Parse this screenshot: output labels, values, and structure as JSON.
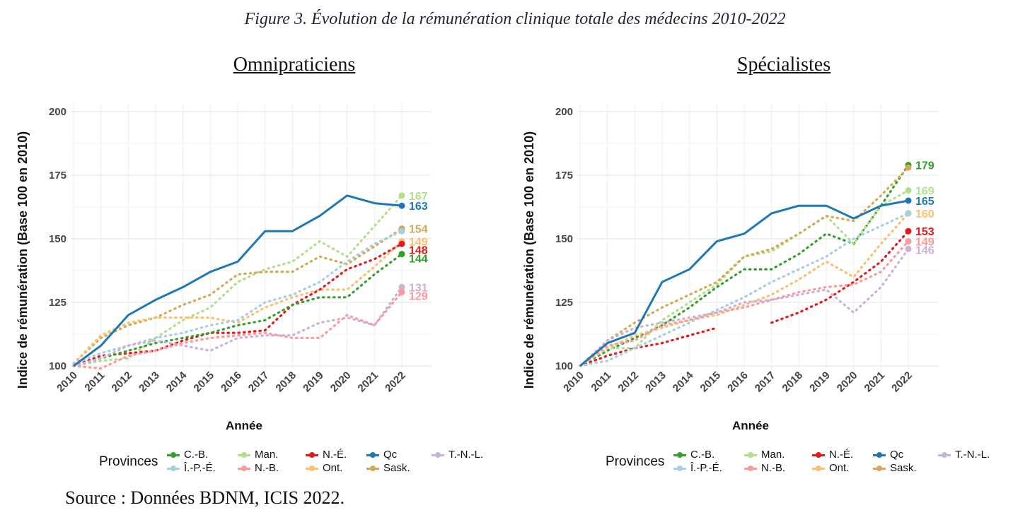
{
  "figure_title": "Figure 3. Évolution de la rémunération clinique totale des médecins 2010-2022",
  "source": "Source : Données BDNM, ICIS 2022.",
  "legend": {
    "title": "Provinces",
    "items": [
      {
        "label": "C.-B.",
        "color": "#33a02c"
      },
      {
        "label": "Î.-P.-É.",
        "color": "#a6cee3"
      },
      {
        "label": "Man.",
        "color": "#b2df8a"
      },
      {
        "label": "N.-B.",
        "color": "#fb9a99"
      },
      {
        "label": "N.-É.",
        "color": "#e31a1c"
      },
      {
        "label": "Ont.",
        "color": "#fdbf6f"
      },
      {
        "label": "Qc",
        "color": "#1f78b4"
      },
      {
        "label": "Sask.",
        "color": "#d4a954"
      },
      {
        "label": "T.-N.-L.",
        "color": "#cab2d6"
      }
    ]
  },
  "chart_data": [
    {
      "type": "line",
      "title": "Omnipraticiens",
      "xlabel": "Année",
      "ylabel": "Indice de rémunération (Base 100 en 2010)",
      "x": [
        2010,
        2011,
        2012,
        2013,
        2014,
        2015,
        2016,
        2017,
        2018,
        2019,
        2020,
        2021,
        2022
      ],
      "ylim": [
        100,
        200
      ],
      "yticks": [
        100,
        125,
        150,
        175,
        200
      ],
      "grid": true,
      "legend_position": "bottom",
      "series": [
        {
          "name": "Qc",
          "color": "#1f78b4",
          "solid": true,
          "values": [
            100,
            108,
            120,
            126,
            131,
            137,
            141,
            153,
            153,
            159,
            167,
            164,
            163
          ],
          "end_label": "163"
        },
        {
          "name": "Man.",
          "color": "#b2df8a",
          "values": [
            100,
            102,
            103,
            111,
            118,
            123,
            133,
            138,
            141,
            149,
            143,
            155,
            167
          ],
          "end_label": "167"
        },
        {
          "name": "Sask.",
          "color": "#d4a954",
          "values": [
            101,
            111,
            116,
            119,
            124,
            128,
            136,
            137,
            137,
            143,
            140,
            147,
            154
          ],
          "end_label": "154"
        },
        {
          "name": "Ont.",
          "color": "#fdbf6f",
          "values": [
            101,
            112,
            117,
            119,
            119,
            119,
            117,
            123,
            127,
            130,
            130,
            139,
            149
          ],
          "end_label": "149"
        },
        {
          "name": "N.-É.",
          "color": "#e31a1c",
          "values": [
            100,
            104,
            105,
            106,
            110,
            113,
            113,
            114,
            124,
            130,
            138,
            142,
            148
          ],
          "end_label": "148"
        },
        {
          "name": "C.-B.",
          "color": "#33a02c",
          "values": [
            100,
            103,
            106,
            109,
            111,
            113,
            116,
            118,
            124,
            127,
            127,
            136,
            144
          ],
          "end_label": "144"
        },
        {
          "name": "Î.-P.-É.",
          "color": "#a6cee3",
          "values": [
            101,
            105,
            108,
            111,
            113,
            116,
            118,
            125,
            128,
            133,
            141,
            148,
            153
          ],
          "end_label": ""
        },
        {
          "name": "T.-N.-L.",
          "color": "#cab2d6",
          "values": [
            100,
            103,
            108,
            110,
            108,
            106,
            111,
            112,
            112,
            117,
            119,
            116,
            131
          ],
          "end_label": "131"
        },
        {
          "name": "N.-B.",
          "color": "#fb9a99",
          "values": [
            100,
            99,
            104,
            106,
            109,
            111,
            112,
            113,
            111,
            111,
            120,
            116,
            129
          ],
          "end_label": "129"
        }
      ]
    },
    {
      "type": "line",
      "title": "Spécialistes",
      "xlabel": "Année",
      "ylabel": "Indice de rémunération (Base 100 en 2010)",
      "x": [
        2010,
        2011,
        2012,
        2013,
        2014,
        2015,
        2016,
        2017,
        2018,
        2019,
        2020,
        2021,
        2022
      ],
      "ylim": [
        100,
        200
      ],
      "yticks": [
        100,
        125,
        150,
        175,
        200
      ],
      "grid": true,
      "legend_position": "bottom",
      "series": [
        {
          "name": "Qc",
          "color": "#1f78b4",
          "solid": true,
          "values": [
            100,
            109,
            113,
            133,
            138,
            149,
            152,
            160,
            163,
            163,
            158,
            163,
            165
          ],
          "end_label": "165"
        },
        {
          "name": "C.-B.",
          "color": "#33a02c",
          "values": [
            100,
            106,
            111,
            116,
            123,
            131,
            138,
            138,
            144,
            152,
            148,
            163,
            179
          ],
          "end_label": "179"
        },
        {
          "name": "Man.",
          "color": "#b2df8a",
          "values": [
            100,
            107,
            107,
            118,
            125,
            132,
            143,
            145,
            152,
            159,
            148,
            163,
            169
          ],
          "end_label": "169"
        },
        {
          "name": "Sask.",
          "color": "#d4a954",
          "values": [
            100,
            110,
            117,
            123,
            128,
            133,
            143,
            146,
            152,
            159,
            157,
            167,
            178
          ],
          "end_label": ""
        },
        {
          "name": "Ont.",
          "color": "#fdbf6f",
          "values": [
            100,
            107,
            112,
            115,
            118,
            120,
            124,
            128,
            134,
            141,
            135,
            148,
            160
          ],
          "end_label": "160"
        },
        {
          "name": "N.-É.",
          "color": "#e31a1c",
          "values": [
            100,
            104,
            107,
            109,
            112,
            115,
            null,
            117,
            121,
            126,
            133,
            141,
            153
          ],
          "end_label": "153"
        },
        {
          "name": "Î.-P.-É.",
          "color": "#a6cee3",
          "values": [
            100,
            102,
            107,
            112,
            117,
            122,
            127,
            133,
            138,
            143,
            150,
            155,
            160
          ],
          "end_label": ""
        },
        {
          "name": "N.-B.",
          "color": "#fb9a99",
          "values": [
            100,
            108,
            110,
            116,
            118,
            121,
            123,
            126,
            129,
            131,
            132,
            137,
            149
          ],
          "end_label": "149"
        },
        {
          "name": "T.-N.-L.",
          "color": "#cab2d6",
          "values": [
            100,
            110,
            115,
            117,
            119,
            121,
            125,
            126,
            128,
            130,
            121,
            131,
            146
          ],
          "end_label": "146"
        }
      ]
    }
  ]
}
